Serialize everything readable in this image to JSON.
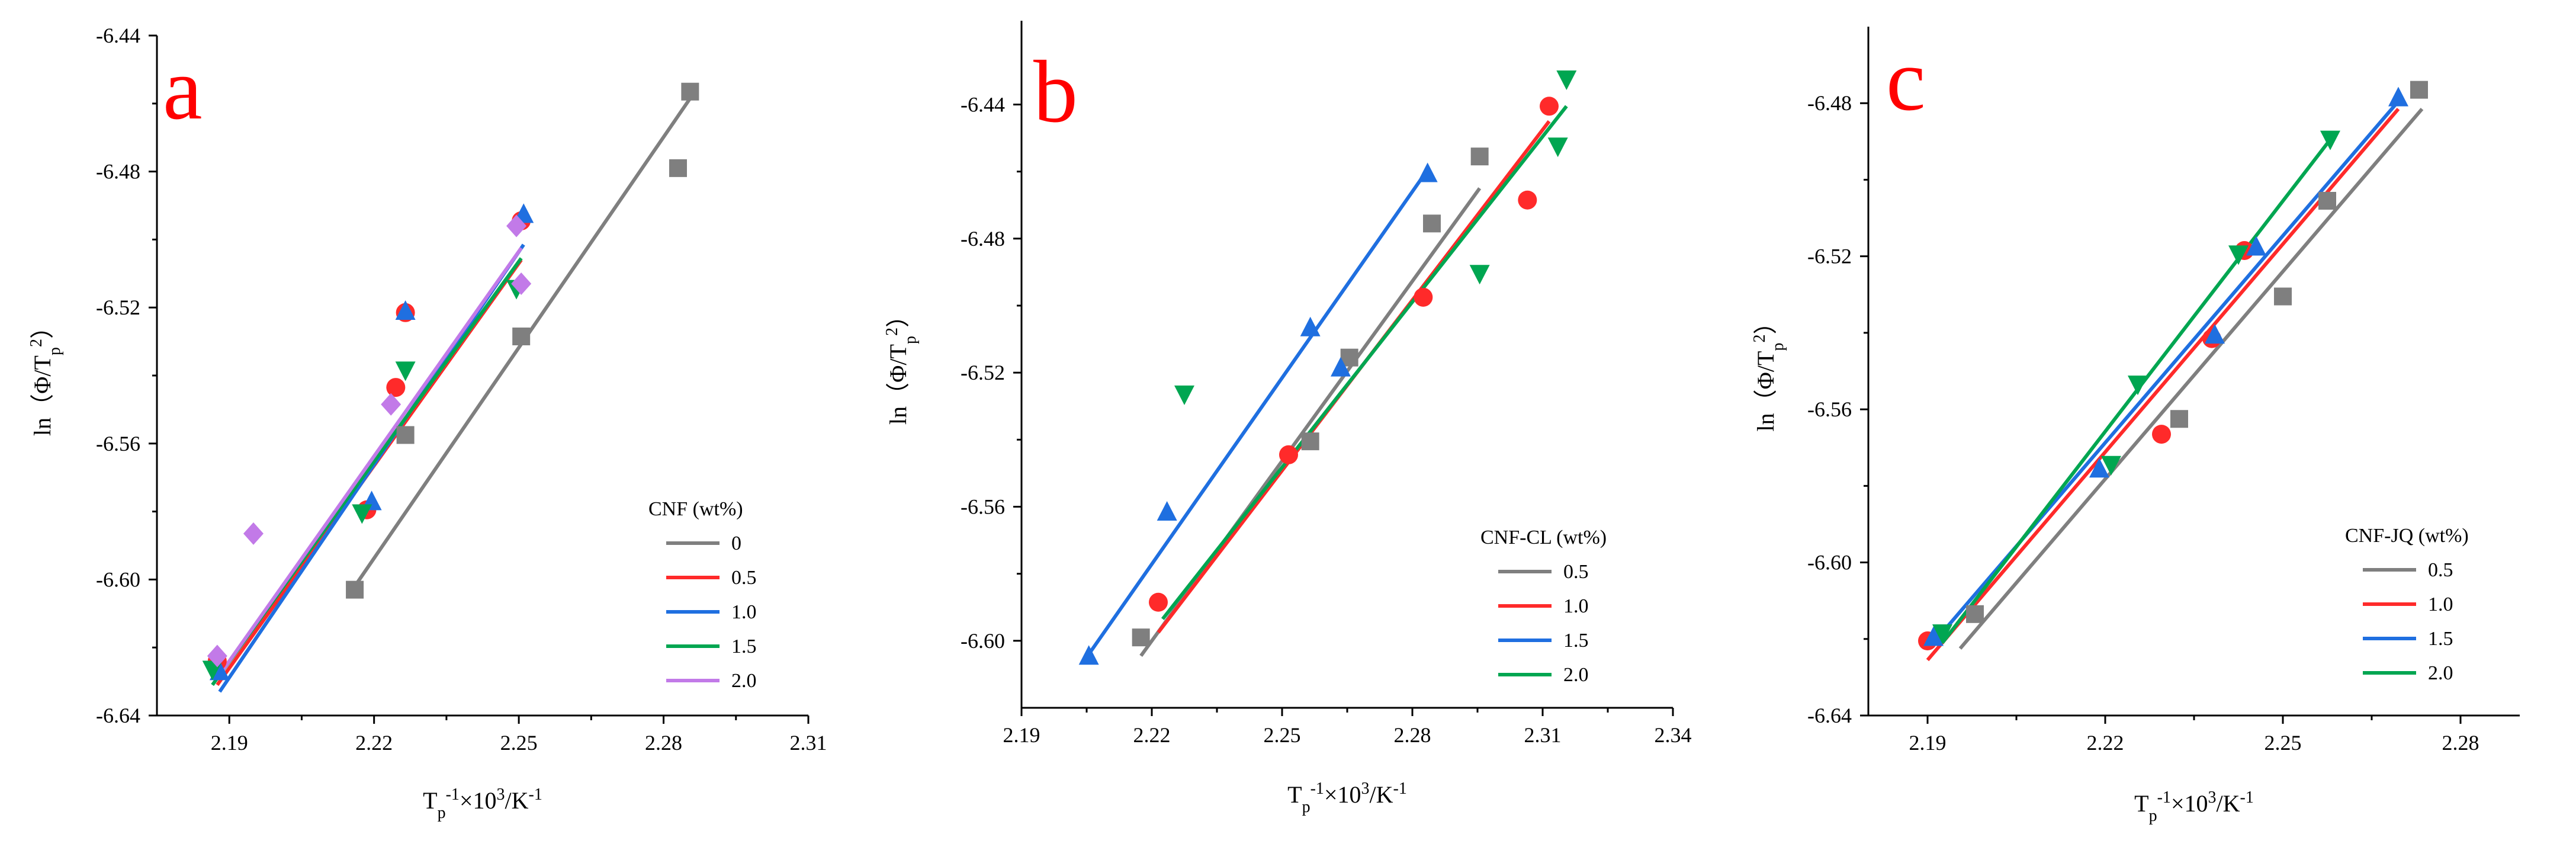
{
  "chart_data": [
    {
      "type": "scatter",
      "panel_label": "a",
      "xlabel": {
        "main": "T",
        "sub": "p",
        "sup": "-1",
        "rest": "×10",
        "sup2": "3",
        "tail": "/K",
        "sup3": "-1"
      },
      "ylabel": {
        "main": "ln（Φ/T",
        "sub": "p",
        "sup": "2",
        "tail": "）"
      },
      "xlim": [
        2.175,
        2.31
      ],
      "ylim": [
        -6.64,
        -6.44
      ],
      "xticks": [
        2.19,
        2.22,
        2.25,
        2.28,
        2.31
      ],
      "yticks": [
        -6.64,
        -6.6,
        -6.56,
        -6.52,
        -6.48,
        -6.44
      ],
      "xtick_labels": [
        "2.19",
        "2.22",
        "2.25",
        "2.28",
        "2.31"
      ],
      "ytick_labels": [
        "-6.64",
        "-6.60",
        "-6.56",
        "-6.52",
        "-6.48",
        "-6.44"
      ],
      "legend_title": "CNF  (wt%)",
      "series": [
        {
          "name": "0",
          "color": "#7f7f7f",
          "marker": "square",
          "points": [
            [
              2.216,
              -6.603
            ],
            [
              2.2265,
              -6.5575
            ],
            [
              2.2505,
              -6.5285
            ],
            [
              2.283,
              -6.479
            ],
            [
              2.2855,
              -6.4565
            ]
          ],
          "fit": [
            [
              2.216,
              -6.602
            ],
            [
              2.2855,
              -6.4585
            ]
          ]
        },
        {
          "name": "0.5",
          "color": "#ff2a2a",
          "marker": "circle",
          "points": [
            [
              2.1875,
              -6.624
            ],
            [
              2.2185,
              -6.5795
            ],
            [
              2.2245,
              -6.5435
            ],
            [
              2.2265,
              -6.5215
            ],
            [
              2.2505,
              -6.4945
            ]
          ],
          "fit": [
            [
              2.1875,
              -6.631
            ],
            [
              2.2505,
              -6.506
            ]
          ]
        },
        {
          "name": "1.0",
          "color": "#1f6fe0",
          "marker": "triangle-up",
          "points": [
            [
              2.188,
              -6.627
            ],
            [
              2.2195,
              -6.577
            ],
            [
              2.2265,
              -6.521
            ],
            [
              2.251,
              -6.4925
            ]
          ],
          "fit": [
            [
              2.188,
              -6.633
            ],
            [
              2.251,
              -6.5015
            ]
          ]
        },
        {
          "name": "1.5",
          "color": "#00a651",
          "marker": "triangle-down",
          "points": [
            [
              2.1865,
              -6.6265
            ],
            [
              2.2175,
              -6.5805
            ],
            [
              2.2265,
              -6.5385
            ],
            [
              2.2495,
              -6.5145
            ]
          ],
          "fit": [
            [
              2.1865,
              -6.631
            ],
            [
              2.2505,
              -6.5055
            ]
          ]
        },
        {
          "name": "2.0",
          "color": "#c27ae8",
          "marker": "diamond",
          "points": [
            [
              2.1875,
              -6.6225
            ],
            [
              2.195,
              -6.5865
            ],
            [
              2.2235,
              -6.5485
            ],
            [
              2.2495,
              -6.496
            ],
            [
              2.2505,
              -6.513
            ]
          ],
          "fit": [
            [
              2.1875,
              -6.629
            ],
            [
              2.2505,
              -6.5025
            ]
          ]
        }
      ]
    },
    {
      "type": "scatter",
      "panel_label": "b",
      "xlabel": {
        "main": "T",
        "sub": "p",
        "sup": "-1",
        "rest": "×10",
        "sup2": "3",
        "tail": "/K",
        "sup3": "-1"
      },
      "ylabel": {
        "main": "ln（Φ/T",
        "sub": "p",
        "sup": "2",
        "tail": "）"
      },
      "xlim": [
        2.19,
        2.34
      ],
      "ylim": [
        -6.62,
        -6.415
      ],
      "xticks": [
        2.19,
        2.22,
        2.25,
        2.28,
        2.31,
        2.34
      ],
      "yticks": [
        -6.6,
        -6.56,
        -6.52,
        -6.48,
        -6.44
      ],
      "xtick_labels": [
        "2.19",
        "2.22",
        "2.25",
        "2.28",
        "2.31",
        "2.34"
      ],
      "ytick_labels": [
        "-6.60",
        "-6.56",
        "-6.52",
        "-6.48",
        "-6.44"
      ],
      "legend_title": "CNF-CL  (wt%)",
      "series": [
        {
          "name": "0.5",
          "color": "#7f7f7f",
          "marker": "square",
          "points": [
            [
              2.2175,
              -6.599
            ],
            [
              2.2565,
              -6.5405
            ],
            [
              2.2655,
              -6.5155
            ],
            [
              2.2845,
              -6.4755
            ],
            [
              2.2955,
              -6.4555
            ]
          ],
          "fit": [
            [
              2.2175,
              -6.6045
            ],
            [
              2.2955,
              -6.465
            ]
          ]
        },
        {
          "name": "1.0",
          "color": "#ff2a2a",
          "marker": "circle",
          "points": [
            [
              2.2215,
              -6.5885
            ],
            [
              2.2515,
              -6.5445
            ],
            [
              2.2825,
              -6.4975
            ],
            [
              2.3065,
              -6.4685
            ],
            [
              2.3115,
              -6.4405
            ]
          ],
          "fit": [
            [
              2.2215,
              -6.5975
            ],
            [
              2.3115,
              -6.445
            ]
          ]
        },
        {
          "name": "1.5",
          "color": "#1f6fe0",
          "marker": "triangle-up",
          "points": [
            [
              2.2055,
              -6.6045
            ],
            [
              2.2235,
              -6.5615
            ],
            [
              2.2565,
              -6.5065
            ],
            [
              2.2635,
              -6.5185
            ],
            [
              2.2835,
              -6.4605
            ]
          ],
          "fit": [
            [
              2.2055,
              -6.604
            ],
            [
              2.2835,
              -6.4595
            ]
          ]
        },
        {
          "name": "2.0",
          "color": "#00a651",
          "marker": "triangle-down",
          "points": [
            [
              2.2275,
              -6.5265
            ],
            [
              2.2955,
              -6.4905
            ],
            [
              2.3135,
              -6.4525
            ],
            [
              2.3155,
              -6.4325
            ]
          ],
          "fit": [
            [
              2.2225,
              -6.5935
            ],
            [
              2.3155,
              -6.4405
            ]
          ]
        }
      ]
    },
    {
      "type": "scatter",
      "panel_label": "c",
      "xlabel": {
        "main": "T",
        "sub": "p",
        "sup": "-1",
        "rest": "×10",
        "sup2": "3",
        "tail": "/K",
        "sup3": "-1"
      },
      "ylabel": {
        "main": "ln（Φ/T",
        "sub": "p",
        "sup": "2",
        "tail": "）"
      },
      "xlim": [
        2.18,
        2.29
      ],
      "ylim": [
        -6.64,
        -6.46
      ],
      "xticks": [
        2.19,
        2.22,
        2.25,
        2.28
      ],
      "yticks": [
        -6.64,
        -6.6,
        -6.56,
        -6.52,
        -6.48
      ],
      "xtick_labels": [
        "2.19",
        "2.22",
        "2.25",
        "2.28"
      ],
      "ytick_labels": [
        "-6.64",
        "-6.60",
        "-6.56",
        "-6.52",
        "-6.48"
      ],
      "legend_title": "CNF-JQ  (wt%)",
      "series": [
        {
          "name": "0.5",
          "color": "#7f7f7f",
          "marker": "square",
          "points": [
            [
              2.198,
              -6.6135
            ],
            [
              2.2325,
              -6.5625
            ],
            [
              2.25,
              -6.5305
            ],
            [
              2.2575,
              -6.5055
            ],
            [
              2.273,
              -6.4765
            ]
          ],
          "fit": [
            [
              2.1955,
              -6.6225
            ],
            [
              2.2735,
              -6.4815
            ]
          ]
        },
        {
          "name": "1.0",
          "color": "#ff2a2a",
          "marker": "circle",
          "points": [
            [
              2.19,
              -6.6205
            ],
            [
              2.2295,
              -6.5665
            ],
            [
              2.238,
              -6.5415
            ],
            [
              2.2435,
              -6.5185
            ]
          ],
          "fit": [
            [
              2.19,
              -6.6255
            ],
            [
              2.2695,
              -6.4815
            ]
          ]
        },
        {
          "name": "1.5",
          "color": "#1f6fe0",
          "marker": "triangle-up",
          "points": [
            [
              2.191,
              -6.6195
            ],
            [
              2.219,
              -6.5755
            ],
            [
              2.2385,
              -6.5405
            ],
            [
              2.2455,
              -6.5175
            ],
            [
              2.2695,
              -6.4785
            ]
          ],
          "fit": [
            [
              2.191,
              -6.621
            ],
            [
              2.2695,
              -6.4795
            ]
          ]
        },
        {
          "name": "2.0",
          "color": "#00a651",
          "marker": "triangle-down",
          "points": [
            [
              2.1925,
              -6.6185
            ],
            [
              2.221,
              -6.5745
            ],
            [
              2.2255,
              -6.5535
            ],
            [
              2.2425,
              -6.5195
            ],
            [
              2.258,
              -6.4895
            ]
          ],
          "fit": [
            [
              2.1925,
              -6.621
            ],
            [
              2.258,
              -6.4895
            ]
          ]
        }
      ]
    }
  ]
}
